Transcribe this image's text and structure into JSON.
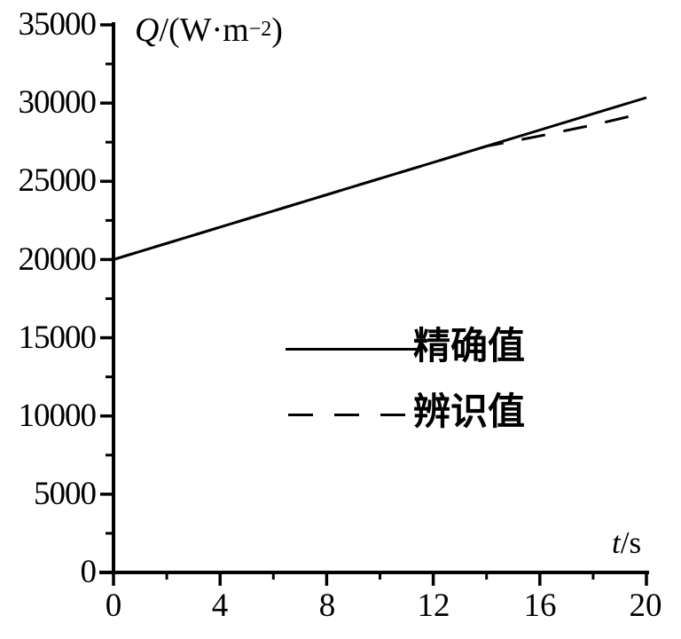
{
  "chart_data": {
    "type": "line",
    "title": "",
    "xlabel": "t/s",
    "ylabel": "Q/(W·m⁻²)",
    "xlim": [
      0,
      20
    ],
    "ylim": [
      0,
      35000
    ],
    "grid": false,
    "background": "#ffffff",
    "line_color": "#000000",
    "legend_position": "center-right-inside",
    "x": [
      0,
      2,
      4,
      6,
      8,
      10,
      12,
      14,
      16,
      18,
      20
    ],
    "series": [
      {
        "name": "精确值",
        "style": "solid",
        "values": [
          20000,
          21035,
          22070,
          23105,
          24140,
          25175,
          26210,
          27245,
          28280,
          29315,
          30350
        ]
      },
      {
        "name": "辨识值",
        "style": "dashed",
        "values": [
          20000,
          21035,
          22070,
          23105,
          24140,
          25175,
          26210,
          27245,
          27900,
          28600,
          29400
        ]
      }
    ],
    "x_major_ticks": [
      0,
      4,
      8,
      12,
      16,
      20
    ],
    "x_minor_ticks": [
      2,
      6,
      10,
      14,
      18
    ],
    "y_major_ticks": [
      0,
      5000,
      10000,
      15000,
      20000,
      25000,
      30000,
      35000
    ],
    "y_minor_ticks": [
      2500,
      7500,
      12500,
      17500,
      22500,
      27500,
      32500
    ]
  },
  "labels": {
    "y_axis": {
      "quantity": "Q",
      "mid": "/(W·m",
      "exponent": "−2",
      "close": ")"
    },
    "x_axis": {
      "quantity": "t",
      "unit": "/s"
    },
    "y_tick_labels": [
      "35000",
      "30000",
      "25000",
      "20000",
      "15000",
      "10000",
      "5000",
      "0"
    ],
    "x_tick_labels": [
      "0",
      "4",
      "8",
      "12",
      "16",
      "20"
    ],
    "legend": [
      {
        "label": "精确值"
      },
      {
        "label": "辨识值"
      }
    ]
  }
}
